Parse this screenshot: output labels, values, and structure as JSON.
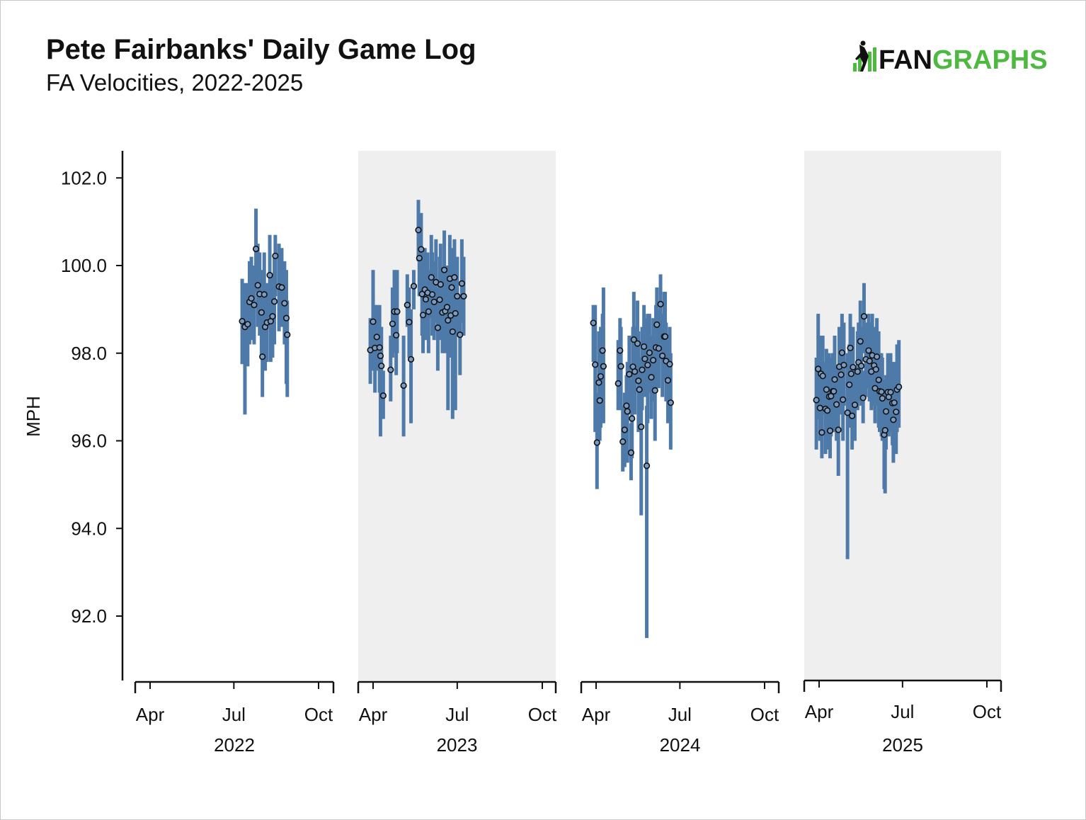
{
  "chart_data": {
    "type": "scatter",
    "title": "Pete Fairbanks' Daily Game Log",
    "subtitle": "FA Velocities, 2022-2025",
    "ylabel": "MPH",
    "ylim": [
      90.5,
      102.6
    ],
    "yticks": [
      92.0,
      94.0,
      96.0,
      98.0,
      100.0,
      102.0
    ],
    "month_ticks": [
      "Apr",
      "Jul",
      "Oct"
    ],
    "grid": false,
    "colors": {
      "range_bar": "#4e7aaa",
      "point_fill": "#7a9cc4",
      "point_stroke": "#111111",
      "shade": "#efefef"
    },
    "panels": [
      {
        "year": "2022",
        "shaded": false,
        "games": [
          [
            191,
            98.73,
            97.75,
            99.7
          ],
          [
            194,
            98.6,
            96.6,
            99.6
          ],
          [
            197,
            98.66,
            97.7,
            99.6
          ],
          [
            199,
            99.17,
            98.2,
            100.1
          ],
          [
            201,
            99.25,
            98.3,
            100.2
          ],
          [
            204,
            99.1,
            98.2,
            100
          ],
          [
            206,
            100.38,
            99.4,
            101.3
          ],
          [
            208,
            99.55,
            98.6,
            100.5
          ],
          [
            210,
            99.35,
            98.4,
            100.3
          ],
          [
            212,
            98.93,
            97.9,
            99.9
          ],
          [
            213,
            97.92,
            97,
            99.8
          ],
          [
            215,
            99.34,
            98.3,
            100.3
          ],
          [
            216,
            98.6,
            97.6,
            99.6
          ],
          [
            218,
            98.7,
            97.8,
            99.6
          ],
          [
            221,
            99.78,
            98.8,
            100.7
          ],
          [
            222,
            98.73,
            97.8,
            99.7
          ],
          [
            224,
            98.84,
            97.9,
            99.8
          ],
          [
            226,
            99.18,
            98.2,
            100.2
          ],
          [
            227,
            100.22,
            99.3,
            100.7
          ],
          [
            231,
            99.52,
            98.5,
            100.5
          ],
          [
            234,
            99.5,
            98.6,
            100.4
          ],
          [
            237,
            99.14,
            98.2,
            100.1
          ],
          [
            239,
            98.8,
            97.3,
            99.9
          ],
          [
            240,
            98.42,
            97,
            99.2
          ]
        ]
      },
      {
        "year": "2023",
        "shaded": true,
        "games": [
          [
            88,
            98.07,
            97.3,
            98.8
          ],
          [
            91,
            98.72,
            97.6,
            99.9
          ],
          [
            93,
            98.12,
            97.1,
            99.1
          ],
          [
            95,
            98.37,
            97.6,
            99.1
          ],
          [
            98,
            98.13,
            97.1,
            99.1
          ],
          [
            99,
            97.94,
            96.1,
            98.6
          ],
          [
            100,
            97.71,
            96.6,
            98.6
          ],
          [
            102,
            97.03,
            96.5,
            97.6
          ],
          [
            110,
            97.62,
            96.9,
            98.4
          ],
          [
            112,
            98.67,
            97.9,
            99.5
          ],
          [
            114,
            98.95,
            98,
            99.9
          ],
          [
            116,
            98.41,
            97.5,
            99.3
          ],
          [
            117,
            98.95,
            98,
            99.9
          ],
          [
            124,
            97.26,
            96.1,
            98.4
          ],
          [
            128,
            99.1,
            98.6,
            99.8
          ],
          [
            130,
            98.71,
            97.9,
            99.5
          ],
          [
            132,
            97.86,
            96.4,
            99
          ],
          [
            135,
            99.53,
            99,
            99.9
          ],
          [
            140,
            100.81,
            100.1,
            101.5
          ],
          [
            141,
            100.17,
            99.3,
            101
          ],
          [
            143,
            100.37,
            99.5,
            101.2
          ],
          [
            144,
            99.35,
            98.4,
            100.3
          ],
          [
            145,
            98.87,
            98,
            99.8
          ],
          [
            147,
            99.45,
            98.5,
            100.4
          ],
          [
            148,
            99.23,
            98.3,
            100.2
          ],
          [
            150,
            99.38,
            98.5,
            100.3
          ],
          [
            151,
            98.95,
            98,
            99.9
          ],
          [
            154,
            99.73,
            98.8,
            100.7
          ],
          [
            155,
            99.34,
            98.4,
            100.3
          ],
          [
            157,
            99.17,
            98.3,
            100.1
          ],
          [
            159,
            99.62,
            98.7,
            100.6
          ],
          [
            161,
            98.58,
            97.6,
            99.5
          ],
          [
            163,
            99.22,
            98.3,
            100.2
          ],
          [
            164,
            99.57,
            98.6,
            100.5
          ],
          [
            166,
            98.93,
            98,
            99.9
          ],
          [
            168,
            99.9,
            98.9,
            100.8
          ],
          [
            169,
            98.96,
            98,
            99.9
          ],
          [
            171,
            99.05,
            98.1,
            100
          ],
          [
            172,
            98.75,
            96.7,
            99.9
          ],
          [
            174,
            99.7,
            98.7,
            100.7
          ],
          [
            175,
            98.86,
            97.9,
            99.8
          ],
          [
            176,
            99.5,
            98.6,
            100.4
          ],
          [
            177,
            98.49,
            96.5,
            99.5
          ],
          [
            179,
            99.73,
            98.7,
            100.6
          ],
          [
            180,
            98.91,
            96.7,
            99.9
          ],
          [
            182,
            99.3,
            98.4,
            100.2
          ],
          [
            185,
            98.42,
            97.5,
            99.3
          ],
          [
            187,
            99.59,
            98.7,
            100.6
          ],
          [
            189,
            99.3,
            98.4,
            100.2
          ]
        ]
      },
      {
        "year": "2024",
        "shaded": false,
        "games": [
          [
            88,
            98.69,
            97.8,
            99.1
          ],
          [
            90,
            97.74,
            96.2,
            99.1
          ],
          [
            92,
            95.96,
            94.9,
            97.1
          ],
          [
            94,
            97.33,
            96.2,
            98.5
          ],
          [
            95,
            96.92,
            96,
            97.9
          ],
          [
            96,
            97.47,
            96.3,
            98.6
          ],
          [
            98,
            98.06,
            97.2,
            98.9
          ],
          [
            99,
            97.7,
            96.4,
            99.5
          ],
          [
            115,
            97.31,
            96.7,
            98.3
          ],
          [
            117,
            98.06,
            97.3,
            98.8
          ],
          [
            118,
            97.7,
            96.7,
            98.6
          ],
          [
            120,
            95.98,
            95.3,
            96.8
          ],
          [
            122,
            96.25,
            95.4,
            97.1
          ],
          [
            124,
            96.8,
            96,
            97.5
          ],
          [
            125,
            96.67,
            95.5,
            97.8
          ],
          [
            127,
            97.52,
            96.6,
            98.4
          ],
          [
            129,
            95.73,
            95.1,
            96.4
          ],
          [
            130,
            96.51,
            95.6,
            97.4
          ],
          [
            131,
            97.69,
            96.7,
            98.6
          ],
          [
            132,
            98.31,
            97.4,
            99.4
          ],
          [
            133,
            97.58,
            96.6,
            98.6
          ],
          [
            136,
            98.22,
            97.3,
            99.2
          ],
          [
            137,
            97.37,
            96.2,
            98.5
          ],
          [
            138,
            97.17,
            96.4,
            97.9
          ],
          [
            140,
            96.32,
            94.3,
            97.2
          ],
          [
            141,
            97.62,
            96.7,
            98.6
          ],
          [
            143,
            98.15,
            97.3,
            99.1
          ],
          [
            144,
            97.87,
            97,
            98.8
          ],
          [
            146,
            95.43,
            91.5,
            96.8
          ],
          [
            147,
            97.73,
            96.4,
            98.9
          ],
          [
            149,
            98.01,
            97.1,
            98.9
          ],
          [
            151,
            97.45,
            96.5,
            98.4
          ],
          [
            153,
            97.84,
            96.9,
            98.8
          ],
          [
            155,
            97.15,
            96,
            98.3
          ],
          [
            156,
            98.13,
            97.2,
            99.1
          ],
          [
            157,
            98.65,
            97.7,
            99.5
          ],
          [
            159,
            98.11,
            97.2,
            99
          ],
          [
            161,
            99.12,
            98.2,
            99.8
          ],
          [
            163,
            97.94,
            97,
            98.9
          ],
          [
            165,
            98.38,
            97.4,
            99.4
          ],
          [
            166,
            98.38,
            97.4,
            99.4
          ],
          [
            167,
            97.82,
            96.9,
            98.7
          ],
          [
            169,
            97.38,
            96.4,
            98.3
          ],
          [
            171,
            97.75,
            96.9,
            98.6
          ],
          [
            172,
            96.87,
            95.8,
            98
          ]
        ]
      },
      {
        "year": "2025",
        "shaded": true,
        "games": [
          [
            88,
            96.93,
            95.8,
            97.9
          ],
          [
            90,
            97.64,
            96.5,
            98.9
          ],
          [
            92,
            96.75,
            96,
            97.5
          ],
          [
            93,
            97.53,
            96.7,
            98.4
          ],
          [
            94,
            96.19,
            95.6,
            96.9
          ],
          [
            95,
            97.48,
            96.6,
            98.4
          ],
          [
            98,
            96.73,
            95.7,
            97.8
          ],
          [
            99,
            97.17,
            96.2,
            98.1
          ],
          [
            100,
            96.69,
            95.8,
            97.5
          ],
          [
            102,
            97.01,
            96,
            98
          ],
          [
            103,
            96.23,
            95.6,
            96.9
          ],
          [
            104,
            97.02,
            96.1,
            97.9
          ],
          [
            106,
            97.13,
            96.2,
            98
          ],
          [
            107,
            97.13,
            96.2,
            98
          ],
          [
            108,
            97.4,
            96.4,
            98.4
          ],
          [
            110,
            96.83,
            96,
            97.7
          ],
          [
            112,
            96.25,
            95.2,
            97.3
          ],
          [
            113,
            97.69,
            96.7,
            98.6
          ],
          [
            115,
            97.51,
            96.6,
            98.4
          ],
          [
            116,
            98.01,
            97.2,
            98.9
          ],
          [
            117,
            96.94,
            96,
            97.9
          ],
          [
            118,
            97.73,
            96.8,
            98.7
          ],
          [
            122,
            96.64,
            93.3,
            98
          ],
          [
            124,
            97.28,
            96.3,
            98.2
          ],
          [
            125,
            98.12,
            97.3,
            98.9
          ],
          [
            126,
            97.53,
            96.6,
            98.4
          ],
          [
            127,
            96.57,
            95.8,
            97.4
          ],
          [
            128,
            97.68,
            96.8,
            98.6
          ],
          [
            130,
            96.82,
            96,
            97.6
          ],
          [
            133,
            97.58,
            96.7,
            98.5
          ],
          [
            134,
            97.79,
            96.9,
            98.7
          ],
          [
            136,
            98.27,
            97.3,
            99.2
          ],
          [
            137,
            97.71,
            96.8,
            98.6
          ],
          [
            139,
            96.98,
            96.4,
            97.6
          ],
          [
            140,
            98.84,
            98,
            99.6
          ],
          [
            142,
            97.86,
            97,
            98.7
          ],
          [
            145,
            98.06,
            97.2,
            98.9
          ],
          [
            146,
            97.82,
            96.9,
            98.7
          ],
          [
            148,
            97.58,
            96.7,
            98.4
          ],
          [
            149,
            97.95,
            97.1,
            98.9
          ],
          [
            151,
            97.72,
            96.8,
            98.6
          ],
          [
            152,
            97.2,
            96.4,
            98
          ],
          [
            153,
            97.63,
            96.8,
            98.5
          ],
          [
            154,
            97.92,
            97,
            98.8
          ],
          [
            156,
            97.39,
            96.3,
            98.5
          ],
          [
            157,
            97.13,
            96.2,
            98
          ],
          [
            159,
            97.12,
            96.1,
            98
          ],
          [
            160,
            96.97,
            96,
            97.9
          ],
          [
            162,
            96.14,
            94.9,
            97.1
          ],
          [
            163,
            96.24,
            94.8,
            97.4
          ],
          [
            164,
            96.67,
            95.8,
            97.5
          ],
          [
            166,
            97.11,
            96.2,
            98
          ],
          [
            167,
            97.0,
            96.1,
            97.9
          ],
          [
            169,
            97.11,
            96.2,
            98
          ],
          [
            171,
            96.86,
            95.9,
            97.8
          ],
          [
            172,
            96.48,
            95.5,
            97.4
          ],
          [
            173,
            96.87,
            95.9,
            97.8
          ],
          [
            175,
            96.66,
            95.7,
            97.6
          ],
          [
            176,
            97.17,
            96.2,
            98.2
          ],
          [
            178,
            97.23,
            96.3,
            98.3
          ]
        ]
      }
    ]
  },
  "logo": {
    "prefix": "FAN",
    "suffix": "GRAPHS",
    "prefix_color": "#111111",
    "suffix_color": "#4db93e"
  }
}
